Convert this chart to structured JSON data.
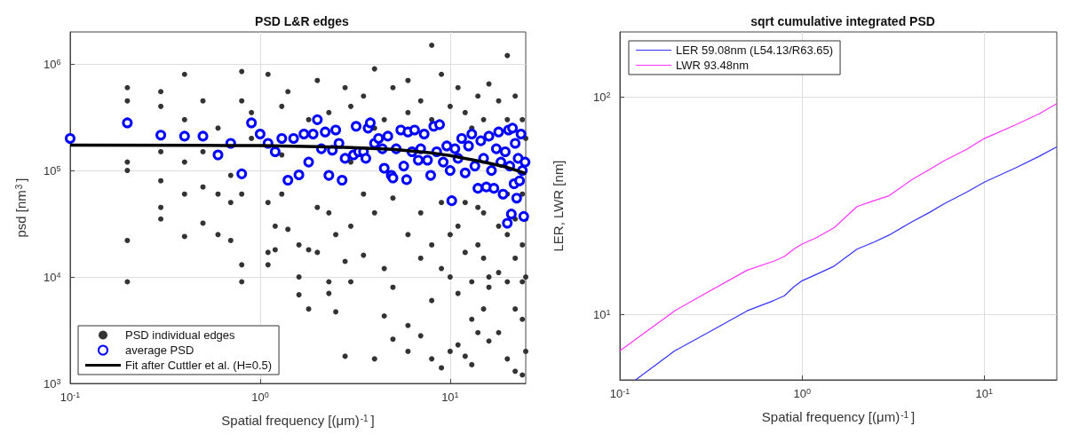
{
  "chart_data": [
    {
      "type": "scatter",
      "title": "PSD L&R edges",
      "xlabel": "Spatial frequency [(μm)$^{-1}$]",
      "ylabel": "psd [nm$^{3}$]",
      "log": "xy",
      "grid": true,
      "legend": "bottom left",
      "marker": "circle",
      "xlim": [
        0.1,
        25
      ],
      "ylim": [
        1000,
        2000000
      ],
      "xticks": [
        {
          "value": 0.1,
          "label": "10$^{-1}$"
        },
        {
          "value": 1,
          "label": "10$^{0}$"
        },
        {
          "value": 10,
          "label": "10$^{1}$"
        }
      ],
      "yticks": [
        {
          "value": 1000,
          "label": "10$^{3}$"
        },
        {
          "value": 10000,
          "label": "10$^{4}$"
        },
        {
          "value": 100000,
          "label": "10$^{5}$"
        },
        {
          "value": 1000000,
          "label": "10$^{6}$"
        }
      ],
      "series": [
        {
          "name": "PSD individual edges",
          "type": "scatter",
          "color": "#333333",
          "x": [
            0.2,
            0.2,
            0.2,
            0.2,
            0.2,
            0.2,
            0.3,
            0.3,
            0.3,
            0.3,
            0.3,
            0.3,
            0.4,
            0.4,
            0.4,
            0.4,
            0.4,
            0.5,
            0.5,
            0.5,
            0.5,
            0.6,
            0.6,
            0.6,
            0.7,
            0.7,
            0.7,
            0.8,
            0.8,
            0.8,
            0.8,
            0.8,
            0.9,
            0.9,
            1.1,
            1.1,
            1.1,
            1.1,
            1.2,
            1.2,
            1.3,
            1.3,
            1.3,
            1.4,
            1.4,
            1.6,
            1.6,
            1.6,
            1.8,
            1.8,
            1.8,
            2,
            2,
            2,
            2.3,
            2.3,
            2.3,
            2.3,
            2.5,
            2.5,
            2.8,
            2.8,
            2.8,
            3,
            3,
            3,
            3,
            3.5,
            3.5,
            3.5,
            4,
            4,
            4,
            4,
            4.5,
            4.5,
            4.5,
            5,
            5,
            5,
            5,
            6,
            6,
            6,
            6,
            6,
            7,
            7,
            7,
            7,
            8,
            8,
            8,
            8,
            8,
            9,
            9,
            9,
            9,
            10,
            10,
            10,
            10,
            11,
            11,
            11,
            11,
            12,
            12,
            12,
            12,
            13,
            13,
            13,
            13,
            14,
            14,
            14,
            14,
            15,
            15,
            15,
            15,
            16,
            16,
            16,
            16,
            18,
            18,
            18,
            18,
            20,
            20,
            20,
            20,
            20,
            20,
            22,
            22,
            22,
            22,
            22,
            24,
            24,
            24,
            24,
            24,
            24,
            25,
            25,
            25,
            25
          ],
          "values": [
            600000,
            450000,
            120000,
            100000,
            22000,
            9000,
            550000,
            400000,
            150000,
            80000,
            45000,
            35000,
            800000,
            300000,
            120000,
            60000,
            24000,
            450000,
            150000,
            70000,
            32000,
            250000,
            60000,
            25000,
            90000,
            50000,
            22000,
            850000,
            450000,
            60000,
            13000,
            9000,
            350000,
            200000,
            800000,
            50000,
            17000,
            13000,
            30000,
            18000,
            400000,
            140000,
            60000,
            550000,
            28000,
            10000,
            6800,
            20000,
            18000,
            5000,
            300000,
            700000,
            17000,
            45000,
            350000,
            9000,
            7000,
            40000,
            4700,
            25000,
            1800,
            14000,
            600000,
            9000,
            30000,
            400000,
            120000,
            500000,
            16000,
            60000,
            1700,
            40000,
            250000,
            900000,
            4300,
            12000,
            300000,
            8000,
            55000,
            600000,
            2600,
            2000,
            3500,
            25000,
            350000,
            700000,
            15000,
            40000,
            450000,
            2800,
            1700,
            6000,
            20000,
            1500000,
            300000,
            1400,
            12000,
            50000,
            800000,
            10000,
            25000,
            400000,
            2000,
            2300,
            7000,
            30000,
            600000,
            1800,
            17000,
            350000,
            50000,
            1500,
            4000,
            9000,
            250000,
            3000,
            20000,
            500000,
            45000,
            5000,
            15000,
            40000,
            300000,
            2500,
            8000,
            650000,
            10000,
            3000,
            11000,
            30000,
            450000,
            1700,
            9000,
            25000,
            60000,
            1200000,
            300000,
            1300,
            5000,
            15000,
            35000,
            500000,
            1200,
            4000,
            9000,
            20000,
            60000,
            300000,
            2000,
            10000,
            35000,
            200000
          ]
        },
        {
          "name": "average PSD",
          "type": "scatter",
          "color": "#0000ff",
          "x": [
            0.1,
            0.2,
            0.3,
            0.4,
            0.5,
            0.6,
            0.7,
            0.8,
            0.9,
            1,
            1.1,
            1.2,
            1.3,
            1.4,
            1.5,
            1.6,
            1.7,
            1.8,
            1.9,
            2,
            2.1,
            2.2,
            2.3,
            2.4,
            2.5,
            2.6,
            2.7,
            2.8,
            3.1,
            3.2,
            3.3,
            3.5,
            3.6,
            3.7,
            3.8,
            4,
            4.2,
            4.4,
            4.5,
            4.7,
            4.9,
            5,
            5.2,
            5.5,
            5.7,
            5.9,
            6,
            6.3,
            6.5,
            6.8,
            7,
            7.3,
            7.6,
            7.9,
            8.2,
            8.5,
            8.8,
            9.2,
            9.6,
            10,
            10.2,
            10.6,
            11,
            11.5,
            12,
            12.5,
            13,
            13.5,
            14,
            14.5,
            15,
            15.5,
            16,
            16.5,
            17,
            17.5,
            18,
            18.5,
            19,
            19.5,
            20,
            20.3,
            20.6,
            21,
            21.3,
            21.7,
            22,
            22.4,
            22.8,
            23.2,
            23.6,
            24,
            24.4,
            24.8
          ],
          "values": [
            200000,
            280000,
            215000,
            210000,
            210000,
            140000,
            180000,
            93000,
            280000,
            220000,
            180000,
            150000,
            200000,
            81000,
            200000,
            91000,
            220000,
            120000,
            220000,
            300000,
            160000,
            230000,
            90000,
            155000,
            240000,
            180000,
            81000,
            130000,
            140000,
            260000,
            150000,
            150000,
            130000,
            250000,
            280000,
            180000,
            200000,
            160000,
            105000,
            210000,
            90000,
            85000,
            160000,
            240000,
            110000,
            82000,
            230000,
            150000,
            240000,
            125000,
            160000,
            220000,
            125000,
            90000,
            260000,
            150000,
            270000,
            120000,
            170000,
            100000,
            52000,
            160000,
            130000,
            200000,
            95000,
            170000,
            220000,
            110000,
            68000,
            190000,
            130000,
            70000,
            210000,
            100000,
            68000,
            160000,
            230000,
            120000,
            60000,
            150000,
            32000,
            240000,
            110000,
            39000,
            250000,
            75000,
            180000,
            55000,
            130000,
            80000,
            220000,
            100000,
            37000,
            120000
          ]
        },
        {
          "name": "Fit after Cuttler et al. (H=0.5)",
          "type": "line",
          "marker": "none",
          "color": "#000000",
          "x": [
            0.1,
            0.5,
            1,
            2,
            3,
            5,
            8,
            10,
            15,
            20,
            25
          ],
          "values": [
            173000,
            172000,
            171000,
            167000,
            164000,
            158000,
            146000,
            138000,
            120000,
            107000,
            94000
          ]
        }
      ]
    },
    {
      "type": "line",
      "title": "sqrt cumulative integrated PSD",
      "xlabel": "Spatial frequency [(μm)$^{-1}$]",
      "ylabel": "LER, LWR [nm]",
      "log": "xy",
      "grid": true,
      "legend": "top left",
      "xlim": [
        0.1,
        25
      ],
      "ylim": [
        5,
        200
      ],
      "xticks": [
        {
          "value": 0.1,
          "label": "10$^{-1}$"
        },
        {
          "value": 1,
          "label": "10$^{0}$"
        },
        {
          "value": 10,
          "label": "10$^{1}$"
        }
      ],
      "yticks": [
        {
          "value": 10,
          "label": "10$^{1}$"
        },
        {
          "value": 100,
          "label": "10$^{2}$"
        }
      ],
      "series": [
        {
          "name": "LER 59.08nm (L54.13/R63.65)",
          "color": "#3333ff",
          "x": [
            0.122,
            0.2,
            0.3,
            0.5,
            0.7,
            0.8,
            0.9,
            1,
            1.2,
            1.5,
            2,
            2.5,
            3,
            4,
            5,
            6,
            8,
            10,
            15,
            20,
            25
          ],
          "values": [
            5,
            6.8,
            8.2,
            10.4,
            11.6,
            12.2,
            13.4,
            14.3,
            15.3,
            16.7,
            20,
            21.6,
            23.2,
            26.7,
            29.5,
            32.3,
            36.6,
            40.7,
            47.5,
            53.5,
            59.08
          ]
        },
        {
          "name": "LWR 93.48nm",
          "color": "#ff33ff",
          "x": [
            0.1,
            0.2,
            0.3,
            0.5,
            0.7,
            0.8,
            0.9,
            1,
            1.2,
            1.5,
            2,
            2.5,
            3,
            4,
            5,
            6,
            8,
            10,
            15,
            20,
            25
          ],
          "values": [
            6.8,
            10.4,
            12.6,
            16,
            17.6,
            18.5,
            20,
            21.1,
            22.6,
            25.1,
            31.4,
            33.5,
            35.2,
            41.7,
            46.5,
            51,
            57.6,
            64.6,
            75,
            84,
            93.48
          ]
        }
      ]
    }
  ]
}
